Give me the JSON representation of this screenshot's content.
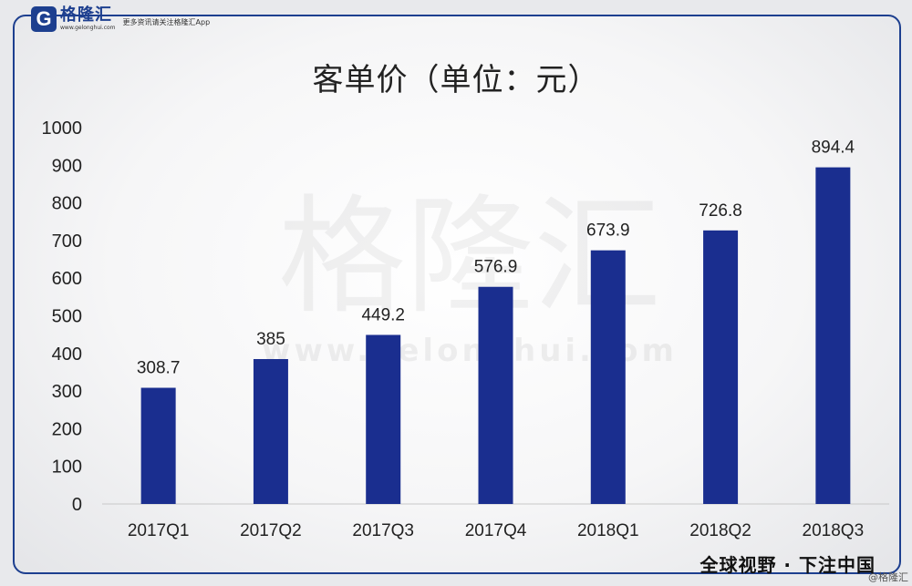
{
  "header": {
    "logo_mark": "G",
    "logo_name": "格隆汇",
    "logo_url": "www.gelonghui.com",
    "logo_slogan": "更多资讯请关注格隆汇App"
  },
  "watermark": {
    "name": "格隆汇",
    "url": "www.gelonghui.com"
  },
  "footer": {
    "tagline": "全球视野 · 下注中国",
    "credit": "@格隆汇"
  },
  "colors": {
    "bar": "#1a2e8f",
    "frame": "#1d3f8f"
  },
  "chart_data": {
    "type": "bar",
    "title": "客单价（单位：元）",
    "categories": [
      "2017Q1",
      "2017Q2",
      "2017Q3",
      "2017Q4",
      "2018Q1",
      "2018Q2",
      "2018Q3"
    ],
    "values": [
      308.7,
      385,
      449.2,
      576.9,
      673.9,
      726.8,
      894.4
    ],
    "data_labels": [
      "308.7",
      "385",
      "449.2",
      "576.9",
      "673.9",
      "726.8",
      "894.4"
    ],
    "yticks": [
      "0",
      "100",
      "200",
      "300",
      "400",
      "500",
      "600",
      "700",
      "800",
      "900",
      "1000"
    ],
    "ylim": [
      0,
      1000
    ],
    "xlabel": "",
    "ylabel": "",
    "grid": false,
    "legend": "none"
  }
}
